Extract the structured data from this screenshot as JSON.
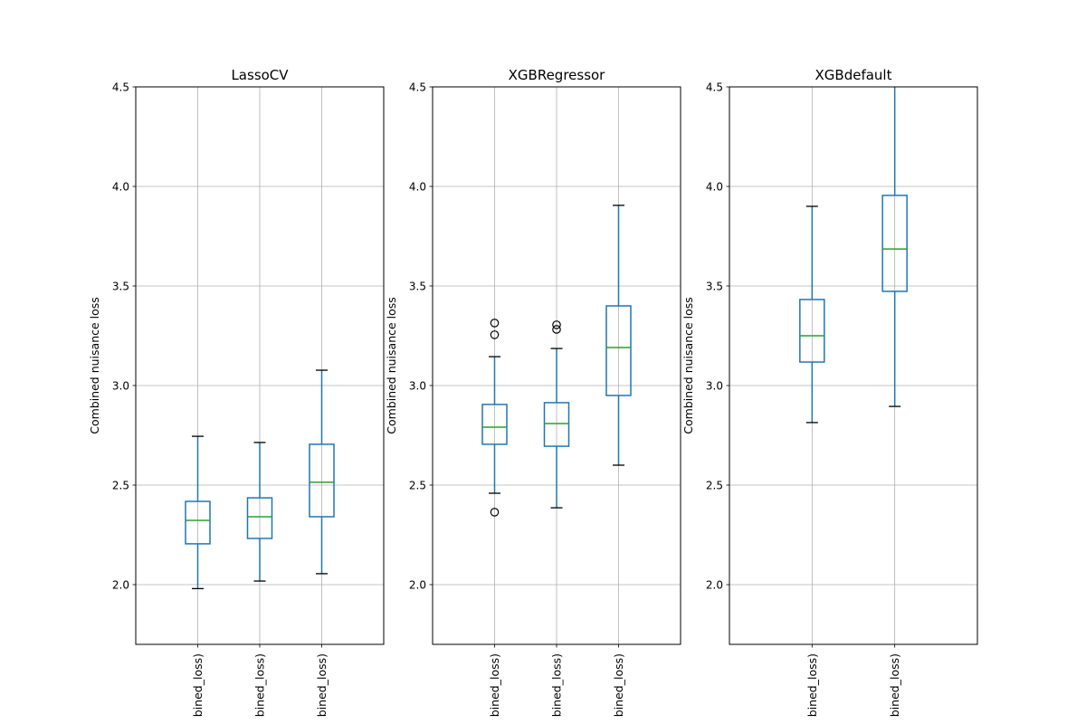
{
  "chart_data": [
    {
      "type": "box",
      "title": "LassoCV",
      "ylabel": "Combined nuisance loss",
      "xlabel": "",
      "ylim": [
        1.7,
        4.5
      ],
      "yticks": [
        2.0,
        2.5,
        3.0,
        3.5,
        4.0,
        4.5
      ],
      "ytick_labels": [
        "2.0",
        "2.5",
        "3.0",
        "3.5",
        "4.0",
        "4.5"
      ],
      "grid": true,
      "categories": [
        "bined_loss)",
        "bined_loss)",
        "bined_loss)"
      ],
      "boxes": [
        {
          "whisker_low": 1.98,
          "q1": 2.205,
          "median": 2.323,
          "q3": 2.418,
          "whisker_high": 2.745,
          "outliers": []
        },
        {
          "whisker_low": 2.018,
          "q1": 2.232,
          "median": 2.341,
          "q3": 2.436,
          "whisker_high": 2.714,
          "outliers": []
        },
        {
          "whisker_low": 2.055,
          "q1": 2.341,
          "median": 2.514,
          "q3": 2.705,
          "whisker_high": 3.077,
          "outliers": []
        }
      ]
    },
    {
      "type": "box",
      "title": "XGBRegressor",
      "ylabel": "Combined nuisance loss",
      "xlabel": "",
      "ylim": [
        1.7,
        4.5
      ],
      "yticks": [
        2.0,
        2.5,
        3.0,
        3.5,
        4.0,
        4.5
      ],
      "ytick_labels": [
        "2.0",
        "2.5",
        "3.0",
        "3.5",
        "4.0",
        "4.5"
      ],
      "grid": true,
      "categories": [
        "bined_loss)",
        "bined_loss)",
        "bined_loss)"
      ],
      "boxes": [
        {
          "whisker_low": 2.459,
          "q1": 2.705,
          "median": 2.791,
          "q3": 2.905,
          "whisker_high": 3.145,
          "outliers": [
            3.314,
            3.255,
            2.364
          ]
        },
        {
          "whisker_low": 2.386,
          "q1": 2.695,
          "median": 2.809,
          "q3": 2.914,
          "whisker_high": 3.186,
          "outliers": [
            3.305,
            3.282
          ]
        },
        {
          "whisker_low": 2.6,
          "q1": 2.95,
          "median": 3.191,
          "q3": 3.4,
          "whisker_high": 3.905,
          "outliers": []
        }
      ]
    },
    {
      "type": "box",
      "title": "XGBdefault",
      "ylabel": "Combined nuisance loss",
      "xlabel": "",
      "ylim": [
        1.7,
        4.5
      ],
      "yticks": [
        2.0,
        2.5,
        3.0,
        3.5,
        4.0,
        4.5
      ],
      "ytick_labels": [
        "2.0",
        "2.5",
        "3.0",
        "3.5",
        "4.0",
        "4.5"
      ],
      "grid": true,
      "categories": [
        "bined_loss)",
        "bined_loss)"
      ],
      "boxes": [
        {
          "whisker_low": 2.814,
          "q1": 3.118,
          "median": 3.25,
          "q3": 3.432,
          "whisker_high": 3.9,
          "outliers": []
        },
        {
          "whisker_low": 2.895,
          "q1": 3.473,
          "median": 3.686,
          "q3": 3.955,
          "whisker_high": 4.6,
          "outliers": []
        }
      ]
    }
  ],
  "colors": {
    "box": "#1f77b4",
    "median": "#2ca02c",
    "cap": "#000000",
    "outlier": "#000000",
    "grid": "#b0b0b0",
    "axes": "#000000"
  }
}
